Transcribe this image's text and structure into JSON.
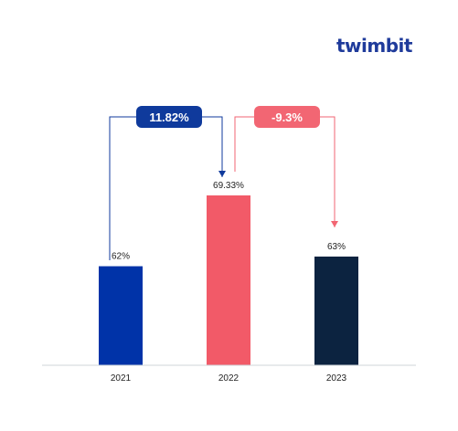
{
  "brand": {
    "logo_text": "twimbit",
    "logo_color": "#1f3b9b",
    "accent_color": "#e94b63"
  },
  "chart_data": {
    "type": "bar",
    "categories": [
      "2021",
      "2022",
      "2023"
    ],
    "values": [
      62,
      69.33,
      63
    ],
    "data_labels": [
      "62%",
      "69.33%",
      "63%"
    ],
    "bar_colors": [
      "#0033a8",
      "#f25a68",
      "#0c2340"
    ],
    "title": "",
    "xlabel": "",
    "ylabel": "",
    "grid": false,
    "annotations": [
      {
        "label": "11.82%",
        "from": "2021",
        "to": "2022",
        "color": "#0f3a9c",
        "text_color": "#ffffff"
      },
      {
        "label": "-9.3%",
        "from": "2022",
        "to": "2023",
        "color": "#f26673",
        "text_color": "#ffffff"
      }
    ]
  }
}
